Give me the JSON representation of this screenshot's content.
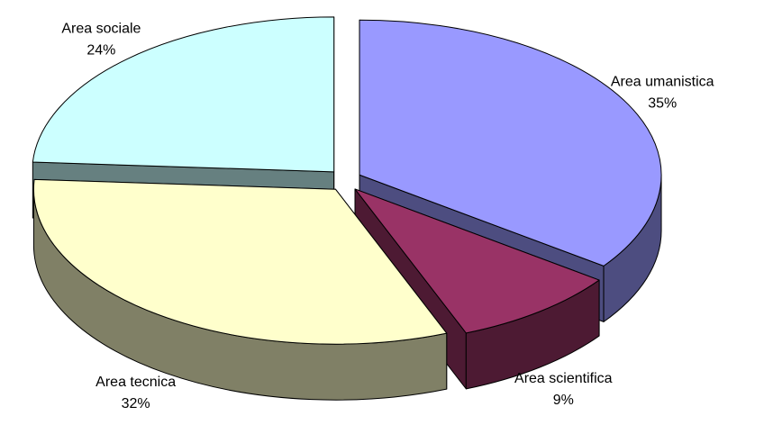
{
  "chart_data": {
    "type": "pie",
    "categories": [
      "Area umanistica",
      "Area scientifica",
      "Area tecnica",
      "Area sociale"
    ],
    "values": [
      35,
      9,
      32,
      24
    ],
    "value_labels": [
      "35%",
      "9%",
      "32%",
      "24%"
    ],
    "colors": [
      "#9999ff",
      "#993366",
      "#ffffcc",
      "#ccffff"
    ]
  }
}
